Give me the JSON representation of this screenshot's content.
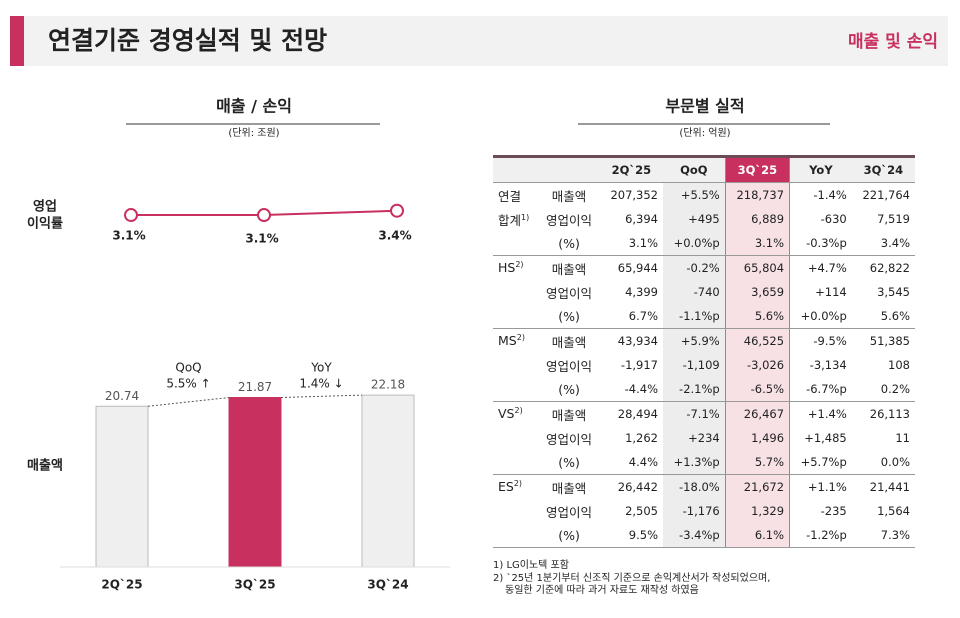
{
  "header": {
    "title": "연결기준 경영실적 및 전망",
    "section": "매출 및 손익"
  },
  "left": {
    "title": "매출 / 손익",
    "unit": "(단위: 조원)"
  },
  "chart_data": [
    {
      "type": "line",
      "ylabel": [
        "영업",
        "이익률"
      ],
      "categories": [
        "2Q`25",
        "3Q`25",
        "3Q`24"
      ],
      "values": [
        3.1,
        3.1,
        3.4
      ],
      "value_labels": [
        "3.1%",
        "3.1%",
        "3.4%"
      ],
      "color": "#c8305f"
    },
    {
      "type": "bar",
      "ylabel": [
        "매출액"
      ],
      "categories": [
        "2Q`25",
        "3Q`25",
        "3Q`24"
      ],
      "values": [
        20.74,
        21.87,
        22.18
      ],
      "colors": [
        "#efefef",
        "#c8305f",
        "#efefef"
      ],
      "annotations": [
        {
          "label": "QoQ",
          "text": "5.5% ↑"
        },
        {
          "label": "YoY",
          "text": "1.4% ↓"
        }
      ]
    }
  ],
  "table": {
    "title": "부문별 실적",
    "unit": "(단위: 억원)",
    "columns": [
      "2Q`25",
      "QoQ",
      "3Q`25",
      "YoY",
      "3Q`24"
    ],
    "groups": [
      {
        "name": [
          "연결",
          "합계"
        ],
        "sup": "1)",
        "rows": [
          {
            "label": "매출액",
            "values": [
              "207,352",
              "+5.5%",
              "218,737",
              "-1.4%",
              "221,764"
            ]
          },
          {
            "label": "영업이익",
            "values": [
              "6,394",
              "+495",
              "6,889",
              "-630",
              "7,519"
            ]
          },
          {
            "label": "(%)",
            "values": [
              "3.1%",
              "+0.0%p",
              "3.1%",
              "-0.3%p",
              "3.4%"
            ]
          }
        ]
      },
      {
        "name": [
          "HS"
        ],
        "sup": "2)",
        "rows": [
          {
            "label": "매출액",
            "values": [
              "65,944",
              "-0.2%",
              "65,804",
              "+4.7%",
              "62,822"
            ]
          },
          {
            "label": "영업이익",
            "values": [
              "4,399",
              "-740",
              "3,659",
              "+114",
              "3,545"
            ]
          },
          {
            "label": "(%)",
            "values": [
              "6.7%",
              "-1.1%p",
              "5.6%",
              "+0.0%p",
              "5.6%"
            ]
          }
        ]
      },
      {
        "name": [
          "MS"
        ],
        "sup": "2)",
        "rows": [
          {
            "label": "매출액",
            "values": [
              "43,934",
              "+5.9%",
              "46,525",
              "-9.5%",
              "51,385"
            ]
          },
          {
            "label": "영업이익",
            "values": [
              "-1,917",
              "-1,109",
              "-3,026",
              "-3,134",
              "108"
            ]
          },
          {
            "label": "(%)",
            "values": [
              "-4.4%",
              "-2.1%p",
              "-6.5%",
              "-6.7%p",
              "0.2%"
            ]
          }
        ]
      },
      {
        "name": [
          "VS"
        ],
        "sup": "2)",
        "rows": [
          {
            "label": "매출액",
            "values": [
              "28,494",
              "-7.1%",
              "26,467",
              "+1.4%",
              "26,113"
            ]
          },
          {
            "label": "영업이익",
            "values": [
              "1,262",
              "+234",
              "1,496",
              "+1,485",
              "11"
            ]
          },
          {
            "label": "(%)",
            "values": [
              "4.4%",
              "+1.3%p",
              "5.7%",
              "+5.7%p",
              "0.0%"
            ]
          }
        ]
      },
      {
        "name": [
          "ES"
        ],
        "sup": "2)",
        "rows": [
          {
            "label": "매출액",
            "values": [
              "26,442",
              "-18.0%",
              "21,672",
              "+1.1%",
              "21,441"
            ]
          },
          {
            "label": "영업이익",
            "values": [
              "2,505",
              "-1,176",
              "1,329",
              "-235",
              "1,564"
            ]
          },
          {
            "label": "(%)",
            "values": [
              "9.5%",
              "-3.4%p",
              "6.1%",
              "-1.2%p",
              "7.3%"
            ]
          }
        ]
      }
    ],
    "notes": [
      "1) LG이노텍 포함",
      "2) `25년 1분기부터 신조직 기준으로 손익계산서가 작성되었으며,",
      "동일한 기준에 따라 과거 자료도 재작성 하였음"
    ]
  }
}
